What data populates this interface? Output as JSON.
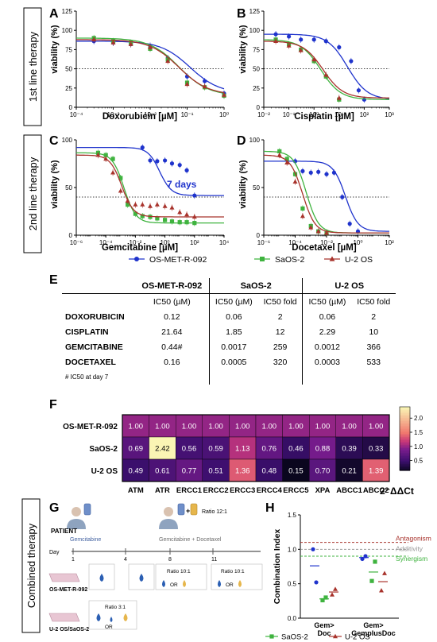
{
  "row_labels": {
    "first": "1st line therapy",
    "second": "2nd line therapy",
    "combined": "Combined therapy"
  },
  "panels": {
    "A": {
      "letter": "A",
      "xlabel": "Doxorubicin [µM]",
      "ylabel": "viability (%)"
    },
    "B": {
      "letter": "B",
      "xlabel": "Cisplatin [µM]",
      "ylabel": "viability (%)"
    },
    "C": {
      "letter": "C",
      "xlabel": "Gemcitabine [µM]",
      "ylabel": "viability (%)",
      "annotation": "7 days"
    },
    "D": {
      "letter": "D",
      "xlabel": "Docetaxel [µM]",
      "ylabel": "viability (%)"
    },
    "E": {
      "letter": "E"
    },
    "F": {
      "letter": "F"
    },
    "G": {
      "letter": "G"
    },
    "H": {
      "letter": "H"
    }
  },
  "legend": [
    {
      "name": "OS-MET-R-092",
      "color": "#1f33cc",
      "marker": "circle"
    },
    {
      "name": "SaOS-2",
      "color": "#3fb33f",
      "marker": "square"
    },
    {
      "name": "U-2 OS",
      "color": "#a8332c",
      "marker": "triangle"
    }
  ],
  "chart_data": [
    {
      "panel": "A",
      "type": "scatter",
      "xlabel": "Doxorubicin [µM]",
      "ylabel": "viability (%)",
      "xscale": "log",
      "xlim": [
        0.0001,
        1
      ],
      "ylim": [
        0,
        125
      ],
      "xticks": [
        "10⁻⁴",
        "10⁻³",
        "10⁻²",
        "10⁻¹",
        "10⁰"
      ],
      "yticks": [
        "0",
        "25",
        "50",
        "75",
        "100",
        "125"
      ],
      "reference_line": 50,
      "series": [
        {
          "name": "OS-MET-R-092",
          "ic50": 0.12,
          "x": [
            0.0003,
            0.001,
            0.003,
            0.01,
            0.03,
            0.1,
            0.3,
            1
          ],
          "y": [
            86,
            84,
            82,
            80,
            64,
            40,
            34,
            18
          ]
        },
        {
          "name": "SaOS-2",
          "ic50": 0.06,
          "x": [
            0.0003,
            0.001,
            0.003,
            0.01,
            0.03,
            0.1,
            0.3,
            1
          ],
          "y": [
            90,
            86,
            84,
            76,
            62,
            32,
            26,
            15
          ]
        },
        {
          "name": "U-2 OS",
          "ic50": 0.06,
          "x": [
            0.0003,
            0.001,
            0.003,
            0.01,
            0.03,
            0.1,
            0.3,
            1
          ],
          "y": [
            88,
            84,
            82,
            78,
            60,
            30,
            27,
            16
          ]
        }
      ]
    },
    {
      "panel": "B",
      "type": "scatter",
      "xlabel": "Cisplatin [µM]",
      "ylabel": "viability (%)",
      "xscale": "log",
      "xlim": [
        0.01,
        1000
      ],
      "ylim": [
        0,
        125
      ],
      "xticks": [
        "10⁻²",
        "10⁻¹",
        "10⁰",
        "10¹",
        "10²",
        "10³"
      ],
      "yticks": [
        "0",
        "25",
        "50",
        "75",
        "100",
        "125"
      ],
      "reference_line": 50,
      "series": [
        {
          "name": "OS-MET-R-092",
          "ic50": 21.64,
          "x": [
            0.03,
            0.1,
            0.3,
            1,
            3,
            10,
            30,
            60,
            100
          ],
          "y": [
            95,
            92,
            88,
            88,
            86,
            78,
            60,
            22,
            10
          ]
        },
        {
          "name": "SaOS-2",
          "ic50": 1.85,
          "x": [
            0.03,
            0.1,
            0.3,
            1,
            3,
            10
          ],
          "y": [
            88,
            82,
            75,
            60,
            40,
            10
          ]
        },
        {
          "name": "U-2 OS",
          "ic50": 2.29,
          "x": [
            0.03,
            0.1,
            0.3,
            1,
            3,
            10
          ],
          "y": [
            86,
            80,
            74,
            62,
            42,
            12
          ]
        }
      ]
    },
    {
      "panel": "C",
      "type": "scatter",
      "xlabel": "Gemcitabine [µM]",
      "ylabel": "viability (%)",
      "xscale": "log",
      "xlim": [
        1e-06,
        10000
      ],
      "ylim": [
        0,
        125
      ],
      "xticks": [
        "10⁻⁶",
        "10⁻⁴",
        "10⁻²",
        "10⁰",
        "10²",
        "10⁴"
      ],
      "yticks": [
        "0",
        "50",
        "100"
      ],
      "reference_line": 50,
      "series": [
        {
          "name": "OS-MET-R-092",
          "ic50": 0.44,
          "x": [
            0.03,
            0.1,
            0.3,
            1,
            3,
            10,
            30,
            100
          ],
          "y": [
            115,
            98,
            97,
            98,
            94,
            92,
            85,
            52
          ]
        },
        {
          "name": "SaOS-2",
          "ic50": 0.0017,
          "x": [
            3e-05,
            0.0001,
            0.0003,
            0.001,
            0.003,
            0.01,
            0.03,
            0.1,
            0.3,
            1,
            3,
            10,
            30,
            100
          ],
          "y": [
            108,
            105,
            100,
            75,
            40,
            28,
            25,
            24,
            22,
            20,
            18,
            17,
            17,
            16
          ]
        },
        {
          "name": "U-2 OS",
          "ic50": 0.0012,
          "x": [
            3e-05,
            0.0001,
            0.0003,
            0.001,
            0.003,
            0.01,
            0.03,
            0.1,
            0.3,
            1,
            3,
            10,
            30,
            100
          ],
          "y": [
            105,
            100,
            82,
            58,
            45,
            40,
            40,
            38,
            40,
            38,
            36,
            30,
            27,
            24
          ]
        }
      ]
    },
    {
      "panel": "D",
      "type": "scatter",
      "xlabel": "Docetaxel [µM]",
      "ylabel": "viability (%)",
      "xscale": "log",
      "xlim": [
        1e-06,
        100
      ],
      "ylim": [
        0,
        125
      ],
      "xticks": [
        "10⁻⁶",
        "10⁻⁴",
        "10⁻²",
        "10⁰",
        "10²"
      ],
      "yticks": [
        "0",
        "50",
        "100"
      ],
      "reference_line": 50,
      "series": [
        {
          "name": "OS-MET-R-092",
          "ic50": 0.16,
          "x": [
            0.0001,
            0.0003,
            0.001,
            0.003,
            0.01,
            0.03,
            0.1,
            0.3,
            1
          ],
          "y": [
            97,
            84,
            82,
            83,
            80,
            82,
            50,
            15,
            5
          ]
        },
        {
          "name": "SaOS-2",
          "ic50": 0.0005,
          "x": [
            1e-05,
            3e-05,
            0.0001,
            0.0003,
            0.001,
            0.003,
            0.01
          ],
          "y": [
            110,
            100,
            80,
            35,
            12,
            5,
            3
          ]
        },
        {
          "name": "U-2 OS",
          "ic50": 0.0003,
          "x": [
            1e-05,
            3e-05,
            0.0001,
            0.0003,
            0.001,
            0.003,
            0.01
          ],
          "y": [
            105,
            95,
            70,
            25,
            10,
            5,
            3
          ]
        }
      ]
    },
    {
      "panel": "F",
      "type": "heatmap",
      "rows": [
        "OS-MET-R-092",
        "SaOS-2",
        "U-2 OS"
      ],
      "cols": [
        "ATM",
        "ATR",
        "ERCC1",
        "ERCC2",
        "ERCC3",
        "ERCC4",
        "ERCC5",
        "XPA",
        "ABCC1",
        "ABCC2"
      ],
      "values": [
        [
          1.0,
          1.0,
          1.0,
          1.0,
          1.0,
          1.0,
          1.0,
          1.0,
          1.0,
          1.0
        ],
        [
          0.69,
          2.42,
          0.56,
          0.59,
          1.13,
          0.76,
          0.46,
          0.88,
          0.39,
          0.33
        ],
        [
          0.49,
          0.61,
          0.77,
          0.51,
          1.36,
          0.48,
          0.15,
          0.7,
          0.21,
          1.39
        ]
      ],
      "colorbar_ticks": [
        "0.5",
        "1.0",
        "1.5",
        "2.0"
      ],
      "colorbar_label": "2⁻ΔΔCt"
    },
    {
      "panel": "H",
      "type": "scatter",
      "ylabel": "Combination Index",
      "ylim": [
        0,
        1.5
      ],
      "yticks": [
        "0.0",
        "0.5",
        "1.0",
        "1.5"
      ],
      "categories": [
        "Gem> Doc",
        "Gem> GemplusDoc"
      ],
      "reference_lines": [
        {
          "label": "Antagonism",
          "value": 1.1,
          "color": "#a8332c"
        },
        {
          "label": "Additivity",
          "value": 1.0,
          "color": "#999999"
        },
        {
          "label": "Synergism",
          "value": 0.9,
          "color": "#3fb33f"
        }
      ],
      "series": [
        {
          "name": "OS-MET-R-092",
          "values": [
            [
              1.0,
              0.52
            ],
            [
              0.86,
              0.9
            ]
          ],
          "means": [
            0.76,
            0.88
          ]
        },
        {
          "name": "SaOS-2",
          "values": [
            [
              0.26,
              0.3
            ],
            [
              0.54,
              0.82
            ]
          ],
          "means": [
            0.28,
            0.67
          ]
        },
        {
          "name": "U-2 OS",
          "values": [
            [
              0.34,
              0.42
            ],
            [
              0.4,
              0.65
            ]
          ],
          "means": [
            0.38,
            0.53
          ]
        }
      ]
    }
  ],
  "table_e": {
    "groups": [
      "OS-MET-R-092",
      "SaOS-2",
      "U-2 OS"
    ],
    "subheaders": [
      "IC50 (µM)",
      "IC50 (µM)",
      "IC50 fold",
      "IC50 (µM)",
      "IC50 fold"
    ],
    "rows": [
      {
        "drug": "DOXORUBICIN",
        "v": [
          "0.12",
          "0.06",
          "2",
          "0.06",
          "2"
        ]
      },
      {
        "drug": "CISPLATIN",
        "v": [
          "21.64",
          "1.85",
          "12",
          "2.29",
          "10"
        ]
      },
      {
        "drug": "GEMCITABINE",
        "v": [
          "0.44#",
          "0.0017",
          "259",
          "0.0012",
          "366"
        ]
      },
      {
        "drug": "DOCETAXEL",
        "v": [
          "0.16",
          "0.0005",
          "320",
          "0.0003",
          "533"
        ]
      }
    ],
    "footnote": "# IC50 at day 7"
  },
  "scheme_g": {
    "patient": "PATIENT",
    "drug1": "Gemcitabine",
    "drug_combo": "Gemcitabine + Docetaxel",
    "ratio_patient": "Ratio 12:1",
    "day_label": "Day",
    "days": [
      "1",
      "4",
      "8",
      "11"
    ],
    "lines": [
      "OS-MET-R-092",
      "U-2 OS/SaOS-2"
    ],
    "ratio_a": "Ratio 10:1",
    "ratio_b": "Ratio 10:1",
    "ratio_c": "Ratio 3:1",
    "or_text": "OR"
  }
}
